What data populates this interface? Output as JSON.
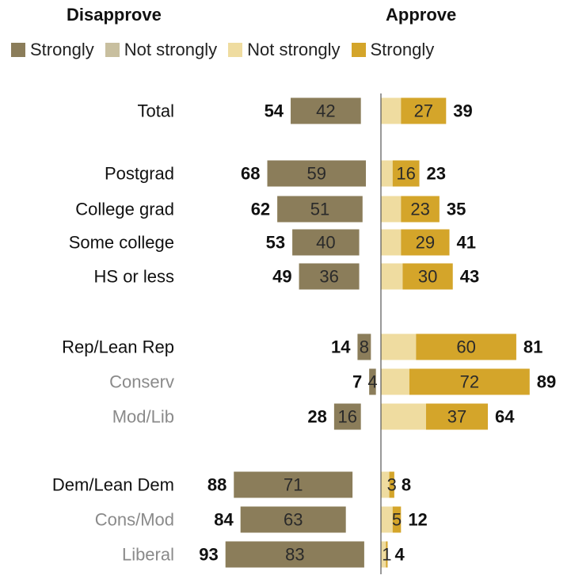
{
  "chart_data": {
    "type": "bar",
    "orientation": "horizontal-diverging",
    "headers": {
      "left": "Disapprove",
      "right": "Approve"
    },
    "legend": [
      {
        "label": "Strongly",
        "color": "#8b7d5a"
      },
      {
        "label": "Not strongly",
        "color": "#c8bf9f"
      },
      {
        "label": "Not strongly",
        "color": "#efdca0"
      },
      {
        "label": "Strongly",
        "color": "#d4a52a"
      }
    ],
    "colors": {
      "disapprove_strongly": "#8b7d5a",
      "disapprove_not_strongly": "#c8bf9f",
      "approve_not_strongly": "#efdca0",
      "approve_strongly": "#d4a52a",
      "label_primary": "#111111",
      "label_secondary": "#8a8a8a"
    },
    "categories": [
      {
        "label": "Total",
        "sub": false,
        "disapprove_total": 54,
        "disapprove_strongly": 42,
        "approve_strongly": 27,
        "approve_total": 39
      },
      {
        "label": "Postgrad",
        "sub": false,
        "disapprove_total": 68,
        "disapprove_strongly": 59,
        "approve_strongly": 16,
        "approve_total": 23
      },
      {
        "label": "College grad",
        "sub": false,
        "disapprove_total": 62,
        "disapprove_strongly": 51,
        "approve_strongly": 23,
        "approve_total": 35
      },
      {
        "label": "Some college",
        "sub": false,
        "disapprove_total": 53,
        "disapprove_strongly": 40,
        "approve_strongly": 29,
        "approve_total": 41
      },
      {
        "label": "HS or less",
        "sub": false,
        "disapprove_total": 49,
        "disapprove_strongly": 36,
        "approve_strongly": 30,
        "approve_total": 43
      },
      {
        "label": "Rep/Lean Rep",
        "sub": false,
        "disapprove_total": 14,
        "disapprove_strongly": 8,
        "approve_strongly": 60,
        "approve_total": 81
      },
      {
        "label": "Conserv",
        "sub": true,
        "disapprove_total": 7,
        "disapprove_strongly": 4,
        "approve_strongly": 72,
        "approve_total": 89
      },
      {
        "label": "Mod/Lib",
        "sub": true,
        "disapprove_total": 28,
        "disapprove_strongly": 16,
        "approve_strongly": 37,
        "approve_total": 64
      },
      {
        "label": "Dem/Lean Dem",
        "sub": false,
        "disapprove_total": 88,
        "disapprove_strongly": 71,
        "approve_strongly": 3,
        "approve_total": 8
      },
      {
        "label": "Cons/Mod",
        "sub": true,
        "disapprove_total": 84,
        "disapprove_strongly": 63,
        "approve_strongly": 5,
        "approve_total": 12
      },
      {
        "label": "Liberal",
        "sub": true,
        "disapprove_total": 93,
        "disapprove_strongly": 83,
        "approve_strongly": 1,
        "approve_total": 4
      }
    ]
  }
}
